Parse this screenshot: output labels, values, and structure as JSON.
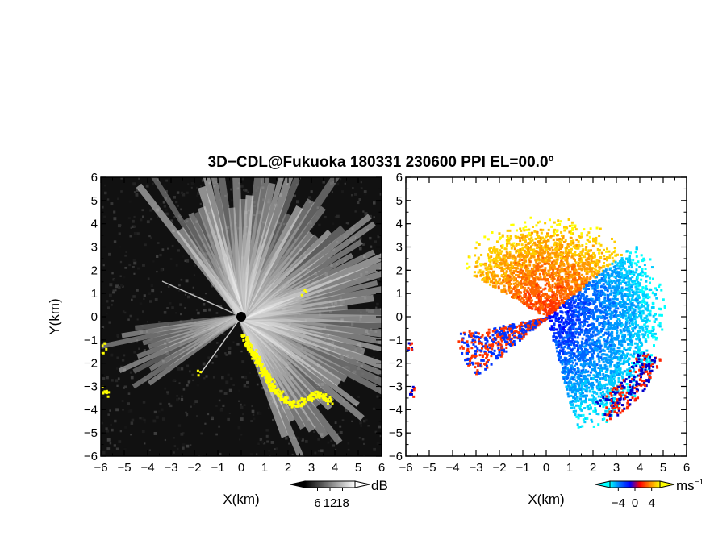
{
  "chart_data": [
    {
      "type": "heatmap",
      "panel": "left",
      "title": "3D−CDL@Fukuoka 180331 230600 PPI EL=00.0º",
      "xlabel": "X(km)",
      "ylabel": "Y(km)",
      "xlim": [
        -6,
        6
      ],
      "ylim": [
        -6,
        6
      ],
      "x_ticks": [
        -6,
        -5,
        -4,
        -3,
        -2,
        -1,
        0,
        1,
        2,
        3,
        4,
        5,
        6
      ],
      "y_ticks": [
        -6,
        -5,
        -4,
        -3,
        -2,
        -1,
        0,
        1,
        2,
        3,
        4,
        5,
        6
      ],
      "x_tick_labels": [
        "−6",
        "−5",
        "−4",
        "−3",
        "−2",
        "−1",
        "0",
        "1",
        "2",
        "3",
        "4",
        "5",
        "6"
      ],
      "y_tick_labels": [
        "−6",
        "−5",
        "−4",
        "−3",
        "−2",
        "−1",
        "0",
        "1",
        "2",
        "3",
        "4",
        "5",
        "6"
      ],
      "colorbar": {
        "unit": "dB",
        "tick_values": [
          6,
          12,
          18
        ],
        "tick_labels": [
          "6",
          "12",
          "18"
        ],
        "range": [
          0,
          24
        ],
        "colors": [
          "#000000",
          "#ffffff"
        ]
      },
      "flag_color": "#ffff00",
      "background_color": "#111111"
    },
    {
      "type": "heatmap",
      "panel": "right",
      "xlabel": "X(km)",
      "xlim": [
        -6,
        6
      ],
      "ylim": [
        -6,
        6
      ],
      "x_ticks": [
        -6,
        -5,
        -4,
        -3,
        -2,
        -1,
        0,
        1,
        2,
        3,
        4,
        5,
        6
      ],
      "y_ticks": [
        -6,
        -5,
        -4,
        -3,
        -2,
        -1,
        0,
        1,
        2,
        3,
        4,
        5,
        6
      ],
      "x_tick_labels": [
        "−6",
        "−5",
        "−4",
        "−3",
        "−2",
        "−1",
        "0",
        "1",
        "2",
        "3",
        "4",
        "5",
        "6"
      ],
      "y_tick_labels": [
        "−6",
        "−5",
        "−4",
        "−3",
        "−2",
        "−1",
        "0",
        "1",
        "2",
        "3",
        "4",
        "5",
        "6"
      ],
      "colorbar": {
        "unit": "ms",
        "unit_exponent": "−1",
        "tick_values": [
          -4,
          0,
          4
        ],
        "tick_labels": [
          "−4",
          "0",
          "4"
        ],
        "range": [
          -6,
          6
        ],
        "colors": [
          "#00ffff",
          "#0070ff",
          "#0000ff",
          "#ff0000",
          "#ff8800",
          "#ffff00"
        ]
      },
      "background_color": "#ffffff"
    }
  ]
}
